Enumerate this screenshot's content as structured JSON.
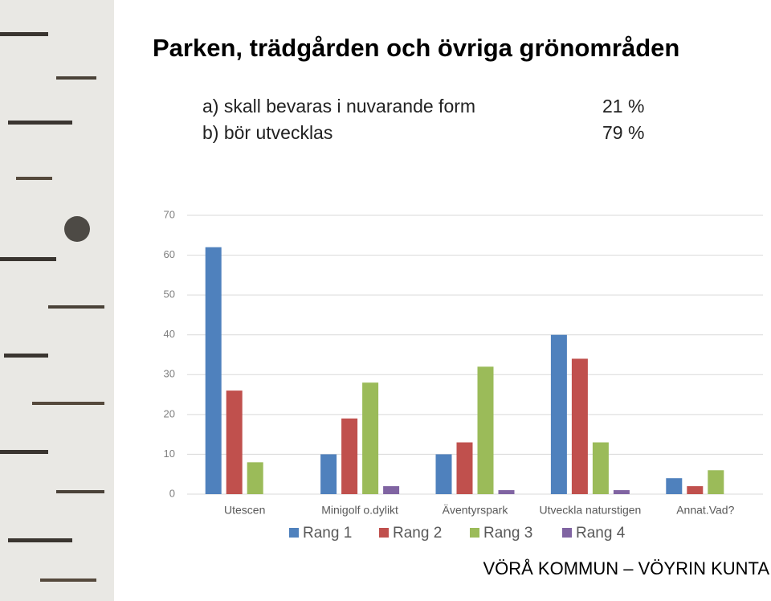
{
  "slide": {
    "title": "Parken, trädgården och övriga grönområden",
    "lines": [
      {
        "label": "a) skall bevaras i nuvarande form",
        "value": "21 %"
      },
      {
        "label": "b) bör utvecklas",
        "value": "79 %"
      }
    ],
    "footer": "VÖRÅ KOMMUN – VÖYRIN KUNTA"
  },
  "chart_data": {
    "type": "bar",
    "categories": [
      "Utescen",
      "Minigolf o.dylikt",
      "Äventyrspark",
      "Utveckla naturstigen",
      "Annat.Vad?"
    ],
    "series": [
      {
        "name": "Rang 1",
        "color": "#4f81bd",
        "values": [
          62,
          10,
          10,
          40,
          4
        ]
      },
      {
        "name": "Rang 2",
        "color": "#c0504d",
        "values": [
          26,
          19,
          13,
          34,
          2
        ]
      },
      {
        "name": "Rang 3",
        "color": "#9bbb59",
        "values": [
          8,
          28,
          32,
          13,
          6
        ]
      },
      {
        "name": "Rang 4",
        "color": "#8064a2",
        "values": [
          0,
          2,
          1,
          1,
          0
        ]
      }
    ],
    "ylim": [
      0,
      70
    ],
    "yticks": [
      0,
      10,
      20,
      30,
      40,
      50,
      60,
      70
    ],
    "grid": true,
    "legend": "bottom"
  }
}
